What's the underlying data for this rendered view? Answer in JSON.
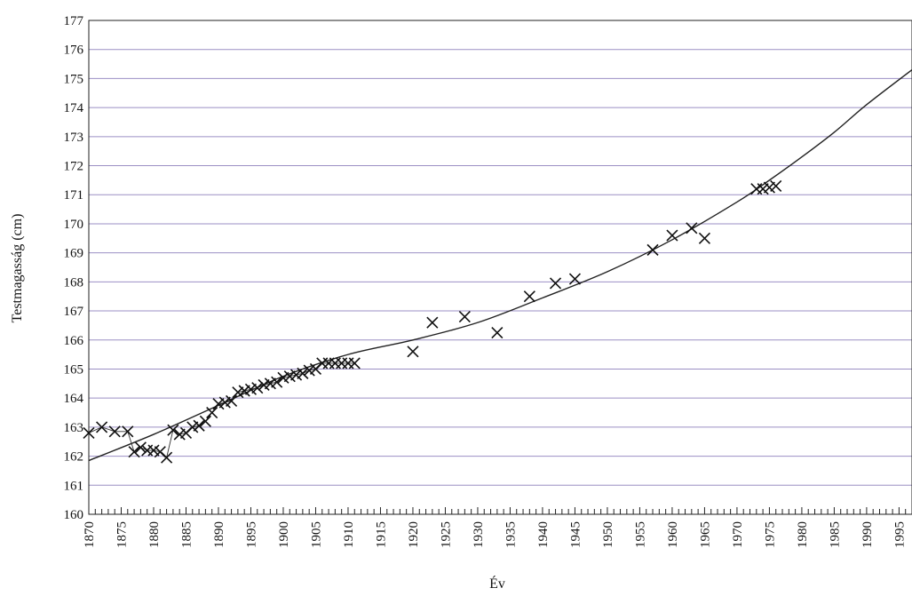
{
  "chart_data": {
    "type": "scatter",
    "title": "",
    "xlabel": "Év",
    "ylabel": "Testmagasság (cm)",
    "xlim": [
      1870,
      1997
    ],
    "ylim": [
      160,
      177
    ],
    "x_ticks": [
      1870,
      1875,
      1880,
      1885,
      1890,
      1895,
      1900,
      1905,
      1910,
      1915,
      1920,
      1925,
      1930,
      1935,
      1940,
      1945,
      1950,
      1955,
      1960,
      1965,
      1970,
      1975,
      1980,
      1985,
      1990,
      1995
    ],
    "y_ticks": [
      160,
      161,
      162,
      163,
      164,
      165,
      166,
      167,
      168,
      169,
      170,
      171,
      172,
      173,
      174,
      175,
      176,
      177
    ],
    "grid": true,
    "colors": {
      "gridline": "#9b8fc4",
      "marks": "#111111"
    },
    "series": [
      {
        "type": "scatter",
        "marker": "x",
        "connected_early": true,
        "points": [
          [
            1870,
            162.8
          ],
          [
            1872,
            163.0
          ],
          [
            1874,
            162.85
          ],
          [
            1876,
            162.85
          ],
          [
            1877,
            162.15
          ],
          [
            1878,
            162.3
          ],
          [
            1879,
            162.2
          ],
          [
            1880,
            162.2
          ],
          [
            1881,
            162.15
          ],
          [
            1882,
            161.95
          ],
          [
            1883,
            162.9
          ],
          [
            1884,
            162.75
          ],
          [
            1885,
            162.8
          ],
          [
            1886,
            163.0
          ],
          [
            1887,
            163.05
          ],
          [
            1888,
            163.2
          ],
          [
            1889,
            163.5
          ],
          [
            1890,
            163.8
          ],
          [
            1891,
            163.85
          ],
          [
            1892,
            163.9
          ],
          [
            1893,
            164.2
          ],
          [
            1894,
            164.25
          ],
          [
            1895,
            164.3
          ],
          [
            1896,
            164.35
          ],
          [
            1897,
            164.45
          ],
          [
            1898,
            164.5
          ],
          [
            1899,
            164.55
          ],
          [
            1900,
            164.7
          ],
          [
            1901,
            164.75
          ],
          [
            1902,
            164.8
          ],
          [
            1903,
            164.85
          ],
          [
            1904,
            164.95
          ],
          [
            1905,
            165.0
          ],
          [
            1906,
            165.2
          ],
          [
            1907,
            165.2
          ],
          [
            1908,
            165.2
          ],
          [
            1909,
            165.2
          ],
          [
            1910,
            165.2
          ],
          [
            1911,
            165.2
          ],
          [
            1920,
            165.6
          ],
          [
            1923,
            166.6
          ],
          [
            1928,
            166.8
          ],
          [
            1933,
            166.25
          ],
          [
            1938,
            167.5
          ],
          [
            1942,
            167.95
          ],
          [
            1945,
            168.1
          ],
          [
            1957,
            169.1
          ],
          [
            1960,
            169.6
          ],
          [
            1963,
            169.85
          ],
          [
            1965,
            169.5
          ],
          [
            1973,
            171.2
          ],
          [
            1974,
            171.2
          ],
          [
            1975,
            171.25
          ],
          [
            1976,
            171.3
          ]
        ]
      },
      {
        "type": "line",
        "trend": true,
        "points": [
          [
            1870,
            161.85
          ],
          [
            1880,
            162.75
          ],
          [
            1890,
            163.75
          ],
          [
            1900,
            164.75
          ],
          [
            1910,
            165.5
          ],
          [
            1920,
            166.0
          ],
          [
            1930,
            166.6
          ],
          [
            1940,
            167.45
          ],
          [
            1950,
            168.35
          ],
          [
            1960,
            169.45
          ],
          [
            1970,
            170.75
          ],
          [
            1975,
            171.5
          ],
          [
            1980,
            172.3
          ],
          [
            1985,
            173.15
          ],
          [
            1990,
            174.1
          ],
          [
            1997,
            175.3
          ]
        ]
      }
    ]
  }
}
